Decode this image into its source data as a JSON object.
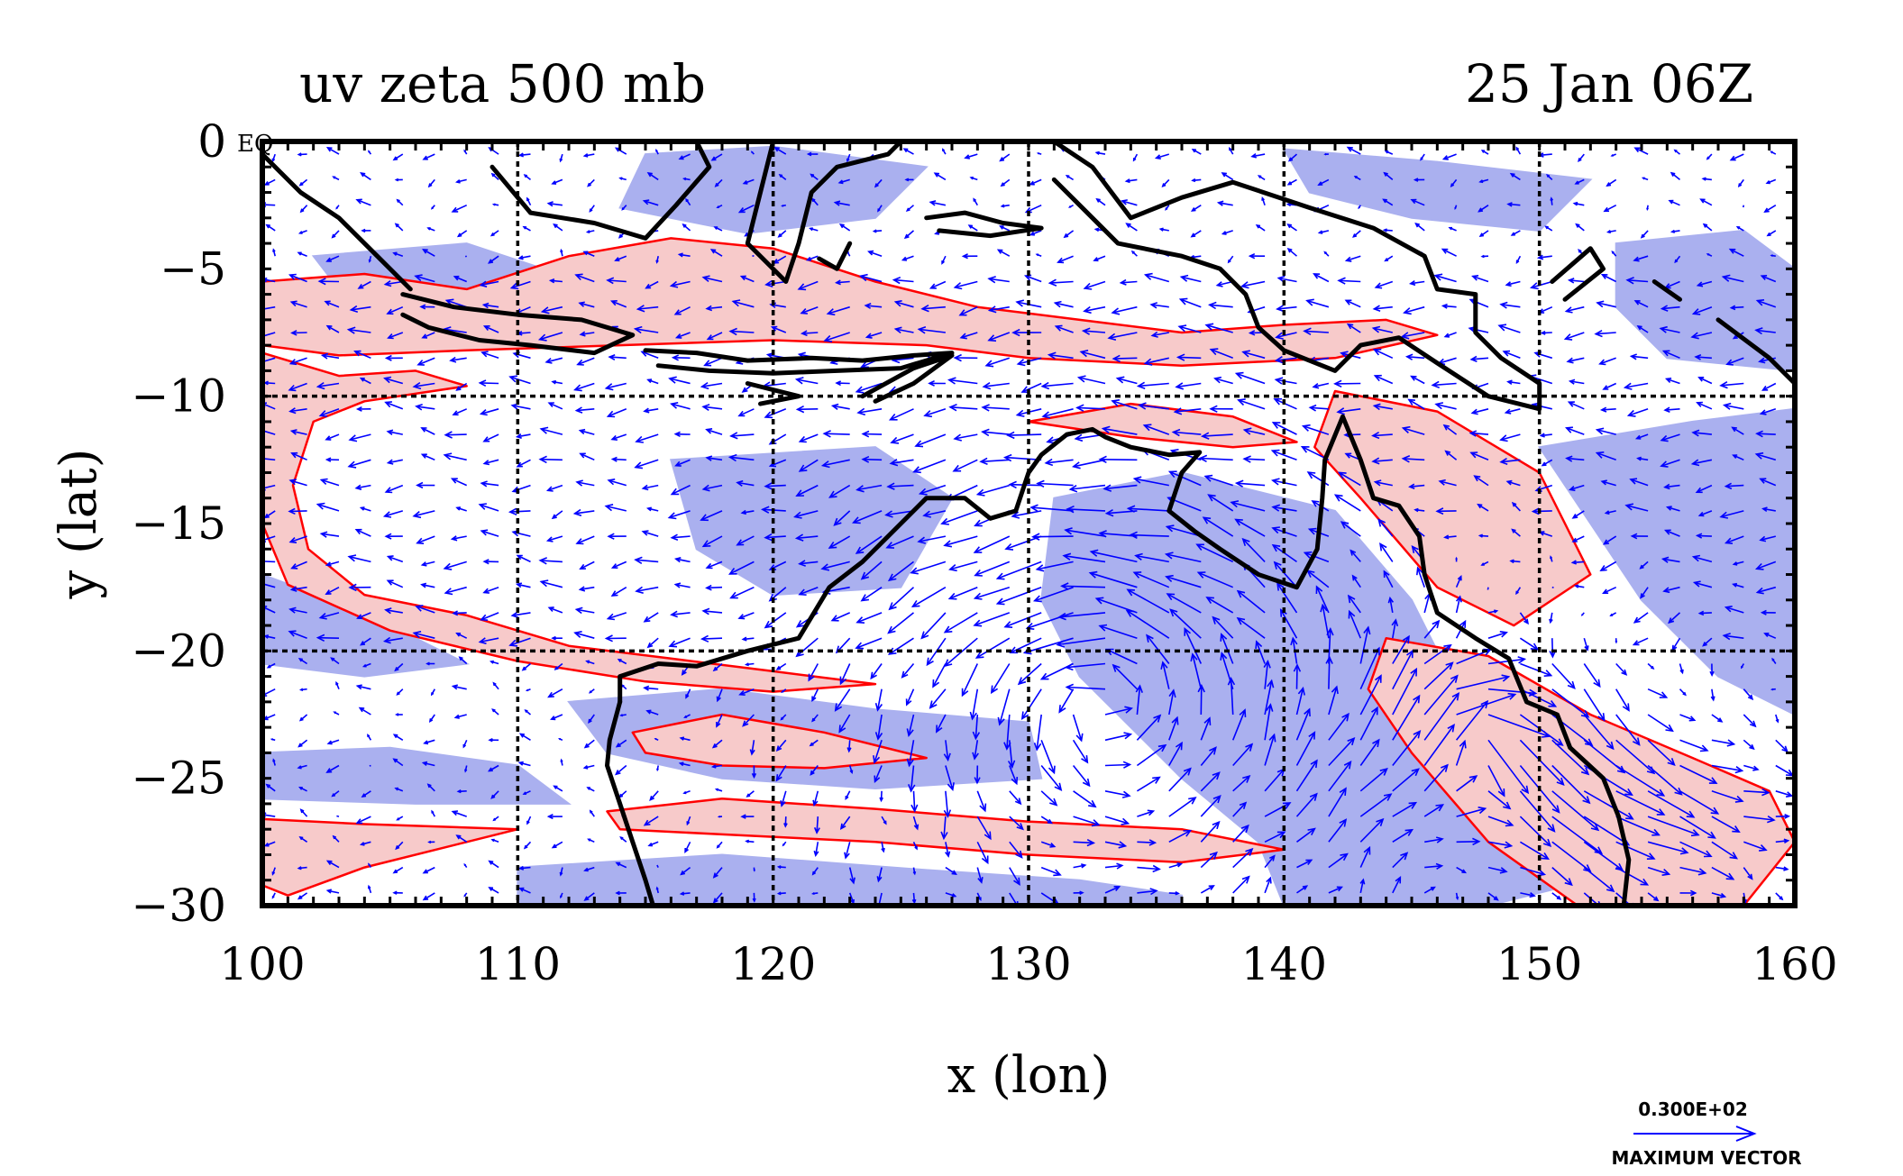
{
  "title_left": "uv zeta 500 mb",
  "title_right": "25 Jan 06Z",
  "equator_label": "EQ",
  "colors": {
    "vector": "#0000ff",
    "positive_contour": "#ff0000",
    "positive_fill": "#f7caca",
    "negative_fill": "#aab0ef",
    "coast": "#000000",
    "grid": "#000000"
  },
  "chart_data": {
    "type": "map",
    "xlabel": "x (lon)",
    "ylabel": "y (lat)",
    "xlim": [
      100,
      160
    ],
    "ylim": [
      -30,
      0
    ],
    "x_ticks": [
      "100",
      "110",
      "120",
      "130",
      "140",
      "150",
      "160"
    ],
    "y_ticks": [
      "0",
      "−5",
      "−10",
      "−15",
      "−20",
      "−25",
      "−30"
    ],
    "grid_lon": [
      110,
      120,
      130,
      140,
      150
    ],
    "grid_lat": [
      -10,
      -20
    ],
    "legend": {
      "value": "0.300E+02",
      "label": "MAXIMUM VECTOR"
    },
    "positive_regions": [
      [
        [
          100,
          -5.5
        ],
        [
          104,
          -5.2
        ],
        [
          108,
          -5.8
        ],
        [
          112,
          -4.5
        ],
        [
          116,
          -3.8
        ],
        [
          120,
          -4.2
        ],
        [
          124,
          -5.5
        ],
        [
          128,
          -6.5
        ],
        [
          132,
          -7.0
        ],
        [
          136,
          -7.5
        ],
        [
          140,
          -7.2
        ],
        [
          144,
          -7.0
        ],
        [
          146,
          -7.6
        ],
        [
          142,
          -8.5
        ],
        [
          136,
          -8.8
        ],
        [
          130,
          -8.5
        ],
        [
          126,
          -8.0
        ],
        [
          120,
          -7.8
        ],
        [
          114,
          -8.0
        ],
        [
          108,
          -8.2
        ],
        [
          103,
          -8.4
        ],
        [
          100,
          -8.0
        ]
      ],
      [
        [
          100,
          -8.3
        ],
        [
          103,
          -9.2
        ],
        [
          106,
          -9.0
        ],
        [
          108,
          -9.6
        ],
        [
          104,
          -10.2
        ],
        [
          102,
          -11.0
        ],
        [
          101.2,
          -13.5
        ],
        [
          101.8,
          -16.0
        ],
        [
          104,
          -17.8
        ],
        [
          108,
          -18.6
        ],
        [
          112,
          -19.8
        ],
        [
          116,
          -20.3
        ],
        [
          120,
          -20.8
        ],
        [
          124,
          -21.3
        ],
        [
          120,
          -21.6
        ],
        [
          115,
          -21.2
        ],
        [
          110,
          -20.4
        ],
        [
          105,
          -19.2
        ],
        [
          101,
          -17.4
        ],
        [
          100,
          -15.0
        ]
      ],
      [
        [
          114.5,
          -23.2
        ],
        [
          118,
          -22.5
        ],
        [
          122,
          -23.2
        ],
        [
          126,
          -24.2
        ],
        [
          122,
          -24.6
        ],
        [
          118,
          -24.5
        ],
        [
          115,
          -24.0
        ]
      ],
      [
        [
          113.5,
          -26.3
        ],
        [
          118,
          -25.8
        ],
        [
          124,
          -26.2
        ],
        [
          130,
          -26.7
        ],
        [
          136,
          -27.0
        ],
        [
          140,
          -27.8
        ],
        [
          136,
          -28.3
        ],
        [
          130,
          -28.0
        ],
        [
          124,
          -27.5
        ],
        [
          118,
          -27.2
        ],
        [
          114,
          -27.0
        ]
      ],
      [
        [
          100,
          -26.6
        ],
        [
          104,
          -26.8
        ],
        [
          110,
          -27.0
        ],
        [
          104,
          -28.5
        ],
        [
          101,
          -29.6
        ],
        [
          100,
          -29.2
        ]
      ],
      [
        [
          142,
          -9.8
        ],
        [
          146,
          -10.6
        ],
        [
          150,
          -13.0
        ],
        [
          152,
          -17.0
        ],
        [
          149,
          -19.0
        ],
        [
          146,
          -17.5
        ],
        [
          143,
          -14.0
        ],
        [
          141.2,
          -12.0
        ]
      ],
      [
        [
          144,
          -19.5
        ],
        [
          148,
          -20.2
        ],
        [
          152,
          -22.5
        ],
        [
          156,
          -24.2
        ],
        [
          159,
          -25.5
        ],
        [
          160,
          -27.5
        ],
        [
          158,
          -30
        ],
        [
          151.5,
          -30
        ],
        [
          148,
          -27.5
        ],
        [
          145,
          -24.0
        ],
        [
          143.3,
          -21.5
        ]
      ],
      [
        [
          130,
          -11.0
        ],
        [
          134,
          -10.3
        ],
        [
          138,
          -10.8
        ],
        [
          140.5,
          -11.8
        ],
        [
          138,
          -12.0
        ],
        [
          134,
          -11.6
        ]
      ]
    ],
    "negative_regions": [
      [
        [
          115,
          -0.5
        ],
        [
          120,
          -0.2
        ],
        [
          126,
          -1.0
        ],
        [
          124,
          -3.0
        ],
        [
          119,
          -3.6
        ],
        [
          114,
          -2.6
        ]
      ],
      [
        [
          140,
          -0.3
        ],
        [
          146,
          -0.8
        ],
        [
          152,
          -1.5
        ],
        [
          150,
          -3.5
        ],
        [
          145,
          -3.0
        ],
        [
          141,
          -2.0
        ]
      ],
      [
        [
          153,
          -4.0
        ],
        [
          158,
          -3.5
        ],
        [
          160,
          -5.0
        ],
        [
          160,
          -9.0
        ],
        [
          155,
          -8.5
        ],
        [
          153,
          -6.5
        ]
      ],
      [
        [
          102,
          -4.5
        ],
        [
          108,
          -4.0
        ],
        [
          111,
          -5.0
        ],
        [
          107,
          -6.0
        ],
        [
          103,
          -5.8
        ]
      ],
      [
        [
          116,
          -12.5
        ],
        [
          124,
          -12.0
        ],
        [
          127,
          -14.0
        ],
        [
          125,
          -17.5
        ],
        [
          120,
          -17.8
        ],
        [
          117,
          -16.0
        ]
      ],
      [
        [
          131,
          -14.0
        ],
        [
          136,
          -13.0
        ],
        [
          142,
          -14.5
        ],
        [
          145,
          -18.0
        ],
        [
          147,
          -22.0
        ],
        [
          150,
          -26.5
        ],
        [
          152,
          -29.0
        ],
        [
          148,
          -30
        ],
        [
          140,
          -30
        ],
        [
          139,
          -27.5
        ],
        [
          136,
          -25.0
        ],
        [
          132,
          -21.0
        ],
        [
          130.5,
          -18.0
        ]
      ],
      [
        [
          150,
          -12.0
        ],
        [
          156,
          -11.0
        ],
        [
          160,
          -10.5
        ],
        [
          160,
          -22.5
        ],
        [
          157,
          -21.0
        ],
        [
          154,
          -18.0
        ],
        [
          152,
          -15.0
        ]
      ],
      [
        [
          100,
          -24.0
        ],
        [
          105,
          -23.8
        ],
        [
          110,
          -24.5
        ],
        [
          112,
          -26.0
        ],
        [
          106,
          -26.0
        ],
        [
          100,
          -25.8
        ]
      ],
      [
        [
          112,
          -22.0
        ],
        [
          118,
          -21.5
        ],
        [
          124,
          -22.3
        ],
        [
          130,
          -22.8
        ],
        [
          130.5,
          -25.0
        ],
        [
          124,
          -25.4
        ],
        [
          118,
          -25.0
        ],
        [
          113.5,
          -24.0
        ]
      ],
      [
        [
          110,
          -28.5
        ],
        [
          118,
          -28.0
        ],
        [
          126,
          -28.6
        ],
        [
          132,
          -29.0
        ],
        [
          136,
          -29.6
        ],
        [
          136,
          -30
        ],
        [
          110,
          -30
        ]
      ],
      [
        [
          100,
          -17.0
        ],
        [
          104,
          -18.5
        ],
        [
          108,
          -20.5
        ],
        [
          104,
          -21.0
        ],
        [
          100,
          -20.5
        ]
      ]
    ],
    "coastlines": [
      [
        [
          100.0,
          -0.5
        ],
        [
          101.5,
          -2.0
        ],
        [
          103.0,
          -3.0
        ],
        [
          104.5,
          -4.5
        ],
        [
          105.8,
          -5.8
        ]
      ],
      [
        [
          105.5,
          -6.0
        ],
        [
          107.5,
          -6.5
        ],
        [
          110.0,
          -6.8
        ],
        [
          112.5,
          -7.0
        ],
        [
          114.5,
          -7.6
        ],
        [
          113.0,
          -8.3
        ],
        [
          110.5,
          -8.0
        ],
        [
          108.5,
          -7.8
        ],
        [
          106.5,
          -7.3
        ],
        [
          105.5,
          -6.8
        ]
      ],
      [
        [
          115.0,
          -8.2
        ],
        [
          117.0,
          -8.3
        ],
        [
          119.0,
          -8.6
        ],
        [
          121.5,
          -8.5
        ],
        [
          123.5,
          -8.6
        ],
        [
          125.5,
          -8.4
        ],
        [
          127.0,
          -8.3
        ],
        [
          125.0,
          -8.9
        ],
        [
          122.5,
          -9.0
        ],
        [
          120.0,
          -9.1
        ],
        [
          117.5,
          -9.0
        ],
        [
          115.5,
          -8.8
        ]
      ],
      [
        [
          119.0,
          -9.5
        ],
        [
          121.0,
          -10.0
        ],
        [
          119.5,
          -10.3
        ]
      ],
      [
        [
          123.5,
          -10.0
        ],
        [
          125.5,
          -8.9
        ],
        [
          127.0,
          -8.4
        ],
        [
          125.5,
          -9.5
        ],
        [
          124.0,
          -10.2
        ]
      ],
      [
        [
          109.0,
          -1.0
        ],
        [
          110.5,
          -2.8
        ],
        [
          113.0,
          -3.2
        ],
        [
          115.0,
          -3.8
        ],
        [
          116.2,
          -2.5
        ],
        [
          117.5,
          -1.0
        ],
        [
          117.0,
          0.0
        ]
      ],
      [
        [
          120.0,
          0.0
        ],
        [
          119.5,
          -2.0
        ],
        [
          119.0,
          -4.0
        ],
        [
          120.5,
          -5.5
        ],
        [
          121.0,
          -4.0
        ],
        [
          121.5,
          -2.0
        ],
        [
          122.5,
          -1.0
        ],
        [
          124.5,
          -0.5
        ],
        [
          125.0,
          0.0
        ]
      ],
      [
        [
          123.0,
          -4.0
        ],
        [
          122.5,
          -5.0
        ],
        [
          121.8,
          -4.6
        ]
      ],
      [
        [
          126.0,
          -3.0
        ],
        [
          127.5,
          -2.8
        ],
        [
          129.0,
          -3.2
        ],
        [
          130.5,
          -3.4
        ],
        [
          128.5,
          -3.7
        ],
        [
          126.5,
          -3.5
        ]
      ],
      [
        [
          131.0,
          0.0
        ],
        [
          132.5,
          -1.0
        ],
        [
          134.0,
          -3.0
        ],
        [
          136.0,
          -2.2
        ],
        [
          138.0,
          -1.6
        ],
        [
          141.0,
          -2.6
        ],
        [
          143.5,
          -3.4
        ],
        [
          145.5,
          -4.5
        ],
        [
          146.0,
          -5.8
        ],
        [
          147.5,
          -6.0
        ],
        [
          147.5,
          -7.5
        ],
        [
          148.5,
          -8.5
        ],
        [
          150.0,
          -9.5
        ],
        [
          150.0,
          -10.5
        ],
        [
          148.0,
          -10.0
        ],
        [
          146.0,
          -8.7
        ],
        [
          144.5,
          -7.7
        ],
        [
          143.0,
          -8.0
        ],
        [
          142.0,
          -9.0
        ],
        [
          140.0,
          -8.2
        ],
        [
          139.0,
          -7.3
        ],
        [
          138.5,
          -6.0
        ],
        [
          137.5,
          -5.0
        ],
        [
          136.0,
          -4.5
        ],
        [
          133.5,
          -4.0
        ],
        [
          132.5,
          -3.0
        ],
        [
          131.0,
          -1.5
        ]
      ],
      [
        [
          150.5,
          -5.5
        ],
        [
          152.0,
          -4.2
        ],
        [
          152.5,
          -5.0
        ],
        [
          151.0,
          -6.2
        ]
      ],
      [
        [
          154.5,
          -5.5
        ],
        [
          155.5,
          -6.2
        ]
      ],
      [
        [
          157.0,
          -7.0
        ],
        [
          159.0,
          -8.5
        ],
        [
          160.0,
          -9.5
        ]
      ],
      [
        [
          114.0,
          -22.0
        ],
        [
          114.0,
          -21.0
        ],
        [
          115.5,
          -20.5
        ],
        [
          117.0,
          -20.6
        ],
        [
          119.0,
          -20.0
        ],
        [
          121.0,
          -19.5
        ],
        [
          122.2,
          -17.5
        ],
        [
          123.5,
          -16.5
        ],
        [
          124.5,
          -15.5
        ],
        [
          126.0,
          -14.0
        ],
        [
          127.5,
          -14.0
        ],
        [
          128.5,
          -14.8
        ],
        [
          129.5,
          -14.5
        ],
        [
          130.0,
          -13.0
        ],
        [
          130.5,
          -12.3
        ],
        [
          131.5,
          -11.5
        ],
        [
          132.5,
          -11.3
        ],
        [
          133.0,
          -11.6
        ],
        [
          134.0,
          -12.0
        ],
        [
          135.5,
          -12.3
        ],
        [
          136.7,
          -12.2
        ],
        [
          136.0,
          -13.0
        ],
        [
          135.5,
          -14.5
        ],
        [
          136.5,
          -15.3
        ],
        [
          137.5,
          -16.0
        ],
        [
          139.0,
          -17.0
        ],
        [
          140.5,
          -17.5
        ],
        [
          141.3,
          -16.0
        ],
        [
          141.5,
          -14.0
        ],
        [
          141.6,
          -12.5
        ],
        [
          142.3,
          -10.8
        ],
        [
          143.0,
          -12.5
        ],
        [
          143.5,
          -14.0
        ],
        [
          144.5,
          -14.3
        ],
        [
          145.3,
          -15.5
        ],
        [
          145.5,
          -17.0
        ],
        [
          146.0,
          -18.5
        ],
        [
          147.5,
          -19.5
        ],
        [
          148.8,
          -20.3
        ],
        [
          149.5,
          -22.0
        ],
        [
          150.7,
          -22.5
        ],
        [
          151.2,
          -23.8
        ],
        [
          152.5,
          -25.0
        ],
        [
          153.1,
          -26.5
        ],
        [
          153.5,
          -28.2
        ],
        [
          153.3,
          -30.0
        ]
      ],
      [
        [
          114.0,
          -22.0
        ],
        [
          113.6,
          -23.5
        ],
        [
          113.5,
          -24.5
        ],
        [
          114.0,
          -26.0
        ],
        [
          114.5,
          -27.5
        ],
        [
          115.0,
          -29.0
        ],
        [
          115.3,
          -30.0
        ]
      ]
    ],
    "wind_field": {
      "units": "m/s",
      "max_vector": 30,
      "features": [
        {
          "type": "anticyclone",
          "lon": 133,
          "lat": -22,
          "radius": 8,
          "strength": 12
        },
        {
          "type": "cyclone",
          "lon": 147.5,
          "lat": -23.5,
          "radius": 4.5,
          "strength": 16
        },
        {
          "type": "jet",
          "lon": 150,
          "lat": -26,
          "u": 26,
          "v": -5
        },
        {
          "type": "easterly",
          "lon_range": [
            100,
            160
          ],
          "lat_range": [
            -20,
            -5
          ],
          "u": -6,
          "v": 0
        }
      ]
    }
  }
}
